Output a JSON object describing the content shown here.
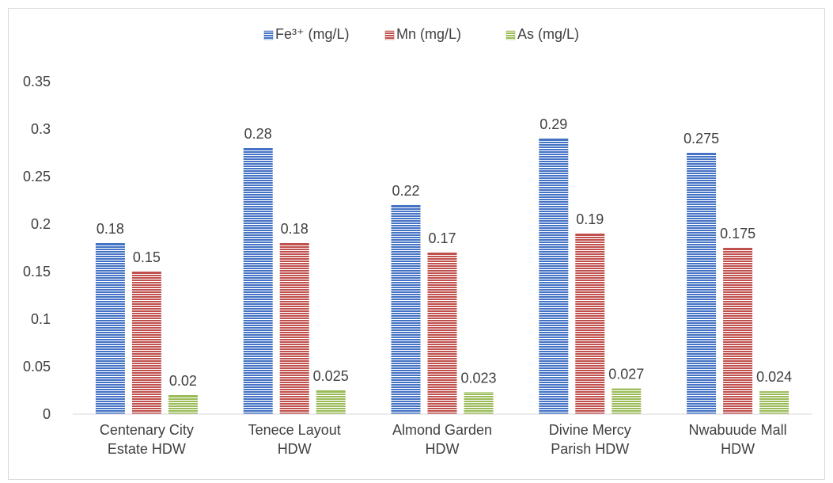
{
  "chart_data": {
    "type": "bar",
    "title": "",
    "xlabel": "",
    "ylabel": "",
    "categories": [
      [
        "Centenary City",
        "Estate HDW"
      ],
      [
        "Tenece Layout",
        "HDW"
      ],
      [
        "Almond Garden",
        "HDW"
      ],
      [
        "Divine Mercy",
        "Parish HDW"
      ],
      [
        "Nwabuude Mall",
        "HDW"
      ]
    ],
    "series": [
      {
        "name": "Fe³⁺ (mg/L)",
        "values": [
          0.18,
          0.28,
          0.22,
          0.29,
          0.275
        ],
        "labels": [
          "0.18",
          "0.28",
          "0.22",
          "0.29",
          "0.275"
        ],
        "color": "#4472c4",
        "pattern": "blue-horizontal-stripes"
      },
      {
        "name": "Mn (mg/L)",
        "values": [
          0.15,
          0.18,
          0.17,
          0.19,
          0.175
        ],
        "labels": [
          "0.15",
          "0.18",
          "0.17",
          "0.19",
          "0.175"
        ],
        "color": "#c0504d",
        "pattern": "red-horizontal-stripes"
      },
      {
        "name": "As (mg/L)",
        "values": [
          0.02,
          0.025,
          0.023,
          0.027,
          0.024
        ],
        "labels": [
          "0.02",
          "0.025",
          "0.023",
          "0.027",
          "0.024"
        ],
        "color": "#9bbb59",
        "pattern": "green-horizontal-stripes"
      }
    ],
    "ylim": [
      0,
      0.35
    ],
    "yticks": [
      "0",
      "0.05",
      "0.1",
      "0.15",
      "0.2",
      "0.25",
      "0.3",
      "0.35"
    ],
    "grid": false,
    "legend_position": "top"
  }
}
